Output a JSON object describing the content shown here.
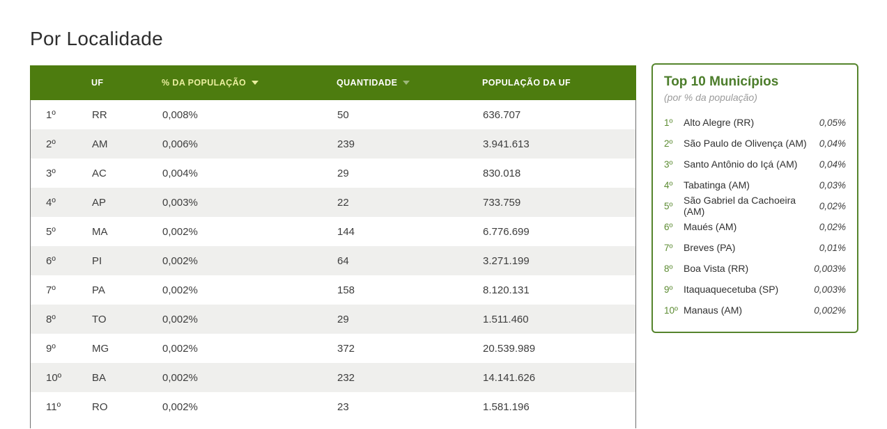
{
  "page": {
    "title": "Por Localidade"
  },
  "colors": {
    "header_bg": "#4d7c0f",
    "header_text": "#ffffff",
    "active_sort_text": "#e9ee9e",
    "row_stripe": "#efefed",
    "panel_border": "#55842c",
    "panel_title": "#4c7d2b",
    "panel_rank": "#5d8c33"
  },
  "icons": {
    "sort_desc": "triangle-down"
  },
  "table": {
    "headers": {
      "rank": "",
      "uf": "UF",
      "pct": "% DA POPULAÇÃO",
      "qty": "QUANTIDADE",
      "pop": "POPULAÇÃO DA UF"
    },
    "sort": {
      "column": "% DA POPULAÇÃO",
      "direction": "desc",
      "secondary_indicator": "QUANTIDADE"
    },
    "rows": [
      {
        "rank": "1º",
        "uf": "RR",
        "pct": "0,008%",
        "qty": "50",
        "pop": "636.707"
      },
      {
        "rank": "2º",
        "uf": "AM",
        "pct": "0,006%",
        "qty": "239",
        "pop": "3.941.613"
      },
      {
        "rank": "3º",
        "uf": "AC",
        "pct": "0,004%",
        "qty": "29",
        "pop": "830.018"
      },
      {
        "rank": "4º",
        "uf": "AP",
        "pct": "0,003%",
        "qty": "22",
        "pop": "733.759"
      },
      {
        "rank": "5º",
        "uf": "MA",
        "pct": "0,002%",
        "qty": "144",
        "pop": "6.776.699"
      },
      {
        "rank": "6º",
        "uf": "PI",
        "pct": "0,002%",
        "qty": "64",
        "pop": "3.271.199"
      },
      {
        "rank": "7º",
        "uf": "PA",
        "pct": "0,002%",
        "qty": "158",
        "pop": "8.120.131"
      },
      {
        "rank": "8º",
        "uf": "TO",
        "pct": "0,002%",
        "qty": "29",
        "pop": "1.511.460"
      },
      {
        "rank": "9º",
        "uf": "MG",
        "pct": "0,002%",
        "qty": "372",
        "pop": "20.539.989"
      },
      {
        "rank": "10º",
        "uf": "BA",
        "pct": "0,002%",
        "qty": "232",
        "pop": "14.141.626"
      },
      {
        "rank": "11º",
        "uf": "RO",
        "pct": "0,002%",
        "qty": "23",
        "pop": "1.581.196"
      }
    ]
  },
  "panel": {
    "title": "Top 10 Municípios",
    "subtitle": "(por % da população)",
    "items": [
      {
        "rank": "1º",
        "name": "Alto Alegre (RR)",
        "value": "0,05%"
      },
      {
        "rank": "2º",
        "name": "São Paulo de Olivença (AM)",
        "value": "0,04%"
      },
      {
        "rank": "3º",
        "name": "Santo Antônio do Içá (AM)",
        "value": "0,04%"
      },
      {
        "rank": "4º",
        "name": "Tabatinga (AM)",
        "value": "0,03%"
      },
      {
        "rank": "5º",
        "name": "São Gabriel da Cachoeira (AM)",
        "value": "0,02%"
      },
      {
        "rank": "6º",
        "name": "Maués (AM)",
        "value": "0,02%"
      },
      {
        "rank": "7º",
        "name": "Breves (PA)",
        "value": "0,01%"
      },
      {
        "rank": "8º",
        "name": "Boa Vista (RR)",
        "value": "0,003%"
      },
      {
        "rank": "9º",
        "name": "Itaquaquecetuba (SP)",
        "value": "0,003%"
      },
      {
        "rank": "10º",
        "name": "Manaus (AM)",
        "value": "0,002%"
      }
    ]
  }
}
